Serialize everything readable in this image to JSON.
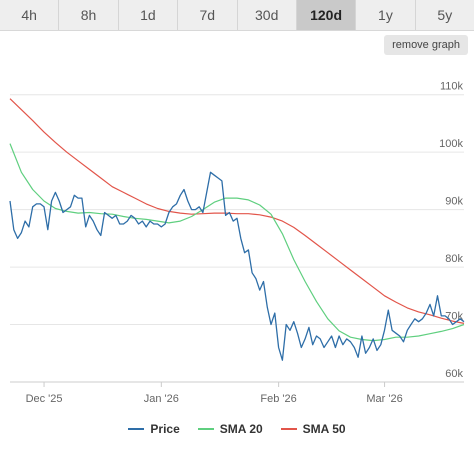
{
  "tabs": [
    {
      "label": "4h",
      "active": false
    },
    {
      "label": "8h",
      "active": false
    },
    {
      "label": "1d",
      "active": false
    },
    {
      "label": "7d",
      "active": false
    },
    {
      "label": "30d",
      "active": false
    },
    {
      "label": "120d",
      "active": true
    },
    {
      "label": "1y",
      "active": false
    },
    {
      "label": "5y",
      "active": false
    }
  ],
  "remove_graph_label": "remove graph",
  "colors": {
    "price": "#2e6ea8",
    "sma20": "#5fcf7f",
    "sma50": "#e2554a"
  },
  "chart_data": {
    "type": "line",
    "x_unit": "date",
    "x_range": [
      "2025-11-22",
      "2026-03-22"
    ],
    "ylim": [
      60000,
      115000
    ],
    "yticks": [
      60000,
      70000,
      80000,
      90000,
      100000,
      110000
    ],
    "ytick_labels": [
      "60k",
      "70k",
      "80k",
      "90k",
      "100k",
      "110k"
    ],
    "xticks": [
      "2025-12-01",
      "2026-01-01",
      "2026-02-01",
      "2026-03-01"
    ],
    "xtick_labels": [
      "Dec '25",
      "Jan '26",
      "Feb '26",
      "Mar '26"
    ],
    "grid": true,
    "legend_position": "bottom",
    "series": [
      {
        "name": "Price",
        "color_key": "price",
        "x": [
          "2025-11-22",
          "2025-11-23",
          "2025-11-24",
          "2025-11-25",
          "2025-11-26",
          "2025-11-27",
          "2025-11-28",
          "2025-11-29",
          "2025-11-30",
          "2025-12-01",
          "2025-12-02",
          "2025-12-03",
          "2025-12-04",
          "2025-12-05",
          "2025-12-06",
          "2025-12-07",
          "2025-12-08",
          "2025-12-09",
          "2025-12-10",
          "2025-12-11",
          "2025-12-12",
          "2025-12-13",
          "2025-12-14",
          "2025-12-15",
          "2025-12-16",
          "2025-12-17",
          "2025-12-18",
          "2025-12-19",
          "2025-12-20",
          "2025-12-21",
          "2025-12-22",
          "2025-12-23",
          "2025-12-24",
          "2025-12-25",
          "2025-12-26",
          "2025-12-27",
          "2025-12-28",
          "2025-12-29",
          "2025-12-30",
          "2025-12-31",
          "2026-01-01",
          "2026-01-02",
          "2026-01-03",
          "2026-01-04",
          "2026-01-05",
          "2026-01-06",
          "2026-01-07",
          "2026-01-08",
          "2026-01-09",
          "2026-01-10",
          "2026-01-11",
          "2026-01-12",
          "2026-01-13",
          "2026-01-14",
          "2026-01-15",
          "2026-01-16",
          "2026-01-17",
          "2026-01-18",
          "2026-01-19",
          "2026-01-20",
          "2026-01-21",
          "2026-01-22",
          "2026-01-23",
          "2026-01-24",
          "2026-01-25",
          "2026-01-26",
          "2026-01-27",
          "2026-01-28",
          "2026-01-29",
          "2026-01-30",
          "2026-01-31",
          "2026-02-01",
          "2026-02-02",
          "2026-02-03",
          "2026-02-04",
          "2026-02-05",
          "2026-02-06",
          "2026-02-07",
          "2026-02-08",
          "2026-02-09",
          "2026-02-10",
          "2026-02-11",
          "2026-02-12",
          "2026-02-13",
          "2026-02-14",
          "2026-02-15",
          "2026-02-16",
          "2026-02-17",
          "2026-02-18",
          "2026-02-19",
          "2026-02-20",
          "2026-02-21",
          "2026-02-22",
          "2026-02-23",
          "2026-02-24",
          "2026-02-25",
          "2026-02-26",
          "2026-02-27",
          "2026-02-28",
          "2026-03-01",
          "2026-03-02",
          "2026-03-03",
          "2026-03-04",
          "2026-03-05",
          "2026-03-06",
          "2026-03-07",
          "2026-03-08",
          "2026-03-09",
          "2026-03-10",
          "2026-03-11",
          "2026-03-12",
          "2026-03-13",
          "2026-03-14",
          "2026-03-15",
          "2026-03-16",
          "2026-03-17",
          "2026-03-18",
          "2026-03-19",
          "2026-03-20",
          "2026-03-21",
          "2026-03-22"
        ],
        "y": [
          91500,
          86500,
          85000,
          86000,
          88000,
          87000,
          90500,
          91000,
          91000,
          90500,
          86500,
          91500,
          93000,
          91500,
          89500,
          90000,
          90500,
          92500,
          92000,
          92000,
          87000,
          89000,
          88000,
          86500,
          85500,
          89500,
          89000,
          88500,
          89000,
          87500,
          87500,
          88000,
          89000,
          88500,
          87500,
          88000,
          87000,
          88000,
          87500,
          87500,
          87000,
          87500,
          89500,
          90500,
          91000,
          92500,
          93500,
          91500,
          90000,
          90000,
          90500,
          89500,
          93000,
          96500,
          96000,
          95500,
          95000,
          89000,
          89500,
          88000,
          88500,
          85000,
          82500,
          83000,
          79000,
          78000,
          76000,
          77500,
          73000,
          70000,
          72000,
          66000,
          63800,
          70000,
          69000,
          70500,
          68500,
          66000,
          67500,
          69500,
          66500,
          68000,
          67500,
          66000,
          67000,
          68000,
          66000,
          68000,
          66500,
          67500,
          67000,
          66000,
          64300,
          68000,
          65000,
          66000,
          67500,
          65500,
          66500,
          69000,
          72500,
          69000,
          68500,
          68000,
          67000,
          69000,
          70000,
          71000,
          70500,
          71000,
          72000,
          73500,
          71500,
          75000,
          71500,
          71500,
          71000,
          70000,
          70500,
          71000,
          70500
        ]
      },
      {
        "name": "SMA 20",
        "color_key": "sma20",
        "x": [
          "2025-11-22",
          "2025-11-25",
          "2025-11-28",
          "2025-12-01",
          "2025-12-04",
          "2025-12-07",
          "2025-12-10",
          "2025-12-13",
          "2025-12-16",
          "2025-12-19",
          "2025-12-22",
          "2025-12-25",
          "2025-12-28",
          "2025-12-31",
          "2026-01-03",
          "2026-01-06",
          "2026-01-09",
          "2026-01-12",
          "2026-01-15",
          "2026-01-18",
          "2026-01-21",
          "2026-01-24",
          "2026-01-27",
          "2026-01-30",
          "2026-02-02",
          "2026-02-05",
          "2026-02-08",
          "2026-02-11",
          "2026-02-14",
          "2026-02-17",
          "2026-02-20",
          "2026-02-23",
          "2026-02-26",
          "2026-03-01",
          "2026-03-04",
          "2026-03-07",
          "2026-03-10",
          "2026-03-13",
          "2026-03-16",
          "2026-03-19",
          "2026-03-22"
        ],
        "y": [
          101500,
          96500,
          93500,
          91500,
          90200,
          89700,
          89400,
          89500,
          89300,
          89200,
          88800,
          88500,
          88300,
          88000,
          87700,
          88000,
          88800,
          90000,
          91300,
          92000,
          92000,
          91700,
          90800,
          89200,
          85800,
          81300,
          77500,
          74000,
          71000,
          68900,
          67800,
          67400,
          67200,
          67400,
          67800,
          67800,
          68000,
          68400,
          68800,
          69300,
          70000
        ]
      },
      {
        "name": "SMA 50",
        "color_key": "sma50",
        "x": [
          "2025-11-22",
          "2025-11-25",
          "2025-11-28",
          "2025-12-01",
          "2025-12-04",
          "2025-12-07",
          "2025-12-10",
          "2025-12-13",
          "2025-12-16",
          "2025-12-19",
          "2025-12-22",
          "2025-12-25",
          "2025-12-28",
          "2025-12-31",
          "2026-01-03",
          "2026-01-06",
          "2026-01-09",
          "2026-01-12",
          "2026-01-15",
          "2026-01-18",
          "2026-01-21",
          "2026-01-24",
          "2026-01-27",
          "2026-01-30",
          "2026-02-02",
          "2026-02-05",
          "2026-02-08",
          "2026-02-11",
          "2026-02-14",
          "2026-02-17",
          "2026-02-20",
          "2026-02-23",
          "2026-02-26",
          "2026-03-01",
          "2026-03-04",
          "2026-03-07",
          "2026-03-10",
          "2026-03-13",
          "2026-03-16",
          "2026-03-19",
          "2026-03-22"
        ],
        "y": [
          109300,
          107400,
          105500,
          103500,
          101700,
          100000,
          98500,
          97000,
          95500,
          94000,
          93000,
          92000,
          91000,
          90200,
          89700,
          89400,
          89200,
          89300,
          89400,
          89400,
          89300,
          89300,
          89100,
          88700,
          88000,
          86900,
          85500,
          84000,
          82500,
          81000,
          79500,
          78000,
          76500,
          75000,
          73900,
          72900,
          72200,
          71700,
          71100,
          70600,
          70200
        ]
      }
    ]
  }
}
